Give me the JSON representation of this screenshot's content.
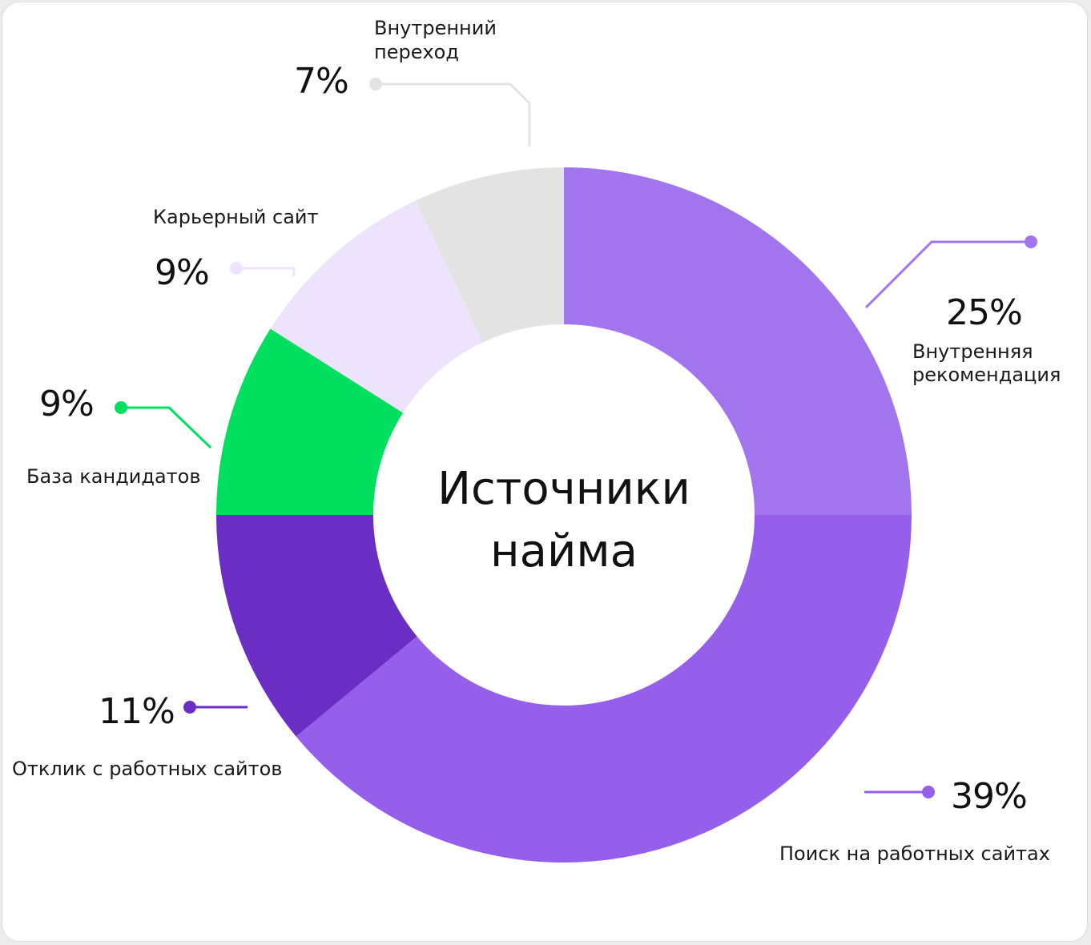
{
  "chart_data": {
    "type": "pie",
    "title_lines": [
      "Источники",
      "найма"
    ],
    "slices": [
      {
        "label_lines": [
          "Внутренняя",
          "рекомендация"
        ],
        "percent_label": "25%",
        "value": 25,
        "color": "#a274ee"
      },
      {
        "label_lines": [
          "Поиск на работных сайтах"
        ],
        "percent_label": "39%",
        "value": 39,
        "color": "#955feb"
      },
      {
        "label_lines": [
          "Отклик с работных сайтов"
        ],
        "percent_label": "11%",
        "value": 11,
        "color": "#6b2ec4"
      },
      {
        "label_lines": [
          "База кандидатов"
        ],
        "percent_label": "9%",
        "value": 9,
        "color": "#00e05e"
      },
      {
        "label_lines": [
          "Карьерный сайт"
        ],
        "percent_label": "9%",
        "value": 9,
        "color": "#ede3fc"
      },
      {
        "label_lines": [
          "Внутренний",
          "переход"
        ],
        "percent_label": "7%",
        "value": 7,
        "color": "#e3e3e3"
      }
    ],
    "legend_placement": "callouts around donut"
  }
}
